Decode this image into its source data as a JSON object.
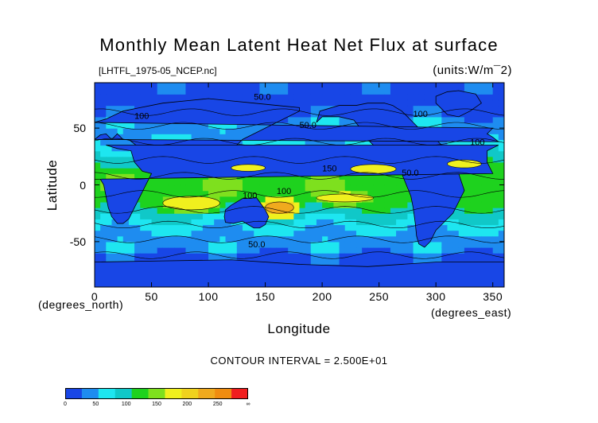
{
  "chart_data": {
    "type": "heatmap",
    "title": "Monthly Mean Latent Heat Net Flux at surface",
    "subtitle": "[LHTFL_1975-05_NCEP.nc]",
    "units": "(units:W/m^2)",
    "xlabel": "Longitude",
    "ylabel": "Latitude",
    "x_unit_label": "(degrees_east)",
    "y_unit_label": "(degrees_north)",
    "xlim": [
      0,
      360
    ],
    "ylim": [
      -90,
      90
    ],
    "x_ticks": [
      "0",
      "50",
      "100",
      "150",
      "200",
      "250",
      "300",
      "350"
    ],
    "x_tick_values": [
      0,
      50,
      100,
      150,
      200,
      250,
      300,
      350
    ],
    "y_ticks": [
      "50",
      "0",
      "-50"
    ],
    "y_tick_values": [
      50,
      0,
      -50
    ],
    "contour_interval": "CONTOUR INTERVAL = 2.500E+01",
    "contour_labels": [
      "50.0",
      "100",
      "150"
    ],
    "colorbar": {
      "labels": [
        "0",
        "50",
        "100",
        "150",
        "200",
        "250",
        "∞"
      ],
      "levels": [
        0,
        25,
        50,
        75,
        100,
        125,
        150,
        175,
        200,
        225,
        250,
        275
      ],
      "colors": [
        "#1846e6",
        "#1e8cf0",
        "#1ee6f0",
        "#10c8c8",
        "#1ed21e",
        "#7ee01e",
        "#f0f01e",
        "#f0d21e",
        "#f0aa1e",
        "#f08c10",
        "#f01e1e"
      ]
    },
    "regions": [
      {
        "name": "land-americas",
        "lon": [
          255,
          262,
          265,
          270,
          275,
          280,
          285,
          290,
          295,
          300,
          305,
          310,
          320,
          325,
          320,
          315,
          305,
          300,
          295,
          290,
          285,
          283,
          282,
          280,
          278,
          276,
          274,
          272,
          270,
          265,
          260,
          250,
          240,
          235,
          228,
          215,
          200,
          195,
          198,
          215,
          230,
          240,
          245,
          250
        ],
        "lat": [
          72,
          70,
          68,
          65,
          60,
          55,
          50,
          48,
          45,
          40,
          35,
          30,
          10,
          -5,
          -15,
          -25,
          -35,
          -40,
          -50,
          -55,
          -52,
          -45,
          -35,
          -20,
          -10,
          -5,
          0,
          5,
          10,
          15,
          20,
          30,
          40,
          48,
          57,
          60,
          60,
          55,
          65,
          70,
          70,
          72,
          72,
          72
        ],
        "value": 10
      },
      {
        "name": "land-eurasia",
        "lon": [
          350,
          0,
          10,
          25,
          40,
          60,
          80,
          100,
          120,
          140,
          160,
          180,
          180,
          170,
          160,
          150,
          140,
          130,
          125,
          120,
          110,
          105,
          100,
          95,
          90,
          80,
          75,
          70,
          60,
          55,
          50,
          45,
          40,
          35,
          30,
          25,
          20,
          15,
          10,
          5,
          0,
          355,
          350,
          345
        ],
        "lat": [
          50,
          55,
          58,
          65,
          68,
          72,
          74,
          76,
          74,
          72,
          70,
          68,
          65,
          60,
          55,
          50,
          45,
          40,
          35,
          30,
          22,
          15,
          10,
          18,
          22,
          20,
          12,
          20,
          25,
          25,
          28,
          30,
          32,
          36,
          40,
          40,
          45,
          40,
          45,
          44,
          40,
          38,
          42,
          45
        ],
        "value": 10
      },
      {
        "name": "land-africa",
        "lon": [
          345,
          355,
          10,
          20,
          32,
          35,
          42,
          50,
          45,
          40,
          35,
          30,
          25,
          20,
          15,
          12,
          10,
          8,
          5,
          0,
          350,
          345
        ],
        "lat": [
          30,
          35,
          35,
          32,
          30,
          20,
          12,
          10,
          0,
          -10,
          -20,
          -30,
          -34,
          -34,
          -28,
          -20,
          -10,
          0,
          5,
          5,
          10,
          20
        ],
        "value": 10
      },
      {
        "name": "land-australia",
        "lon": [
          115,
          120,
          130,
          137,
          142,
          145,
          150,
          153,
          150,
          145,
          140,
          135,
          130,
          122,
          115,
          114
        ],
        "lat": [
          -22,
          -18,
          -12,
          -12,
          -11,
          -15,
          -22,
          -28,
          -35,
          -38,
          -38,
          -35,
          -32,
          -34,
          -33,
          -28
        ],
        "value": 10
      },
      {
        "name": "land-antarctica",
        "lon": [
          0,
          60,
          120,
          180,
          240,
          300,
          360,
          360,
          0
        ],
        "lat": [
          -68,
          -67,
          -66,
          -70,
          -72,
          -68,
          -68,
          -90,
          -90
        ],
        "value": 10
      },
      {
        "name": "land-greenland",
        "lon": [
          300,
          310,
          320,
          335,
          340,
          330,
          320,
          310,
          300
        ],
        "lat": [
          78,
          82,
          83,
          80,
          72,
          65,
          60,
          62,
          72
        ],
        "value": 10
      }
    ],
    "bands": [
      {
        "name": "trade-belt-south",
        "lon": [
          0,
          360
        ],
        "lat": [
          -30,
          -5
        ],
        "value": 110
      },
      {
        "name": "trade-belt-north",
        "lon": [
          0,
          360
        ],
        "lat": [
          5,
          28
        ],
        "value": 95
      }
    ],
    "hotspots": [
      {
        "name": "indian-ocean-south",
        "lon": [
          60,
          110
        ],
        "lat": [
          -22,
          -10
        ],
        "value": 165
      },
      {
        "name": "coral-sea",
        "lon": [
          150,
          175
        ],
        "lat": [
          -25,
          -15
        ],
        "value": 215
      },
      {
        "name": "south-pacific",
        "lon": [
          195,
          245
        ],
        "lat": [
          -15,
          -8
        ],
        "value": 170
      },
      {
        "name": "north-pacific-east",
        "lon": [
          225,
          265
        ],
        "lat": [
          10,
          18
        ],
        "value": 160
      },
      {
        "name": "arabian-sea",
        "lon": [
          120,
          150
        ],
        "lat": [
          12,
          18
        ],
        "value": 150
      },
      {
        "name": "north-atlantic",
        "lon": [
          310,
          340
        ],
        "lat": [
          15,
          22
        ],
        "value": 160
      }
    ]
  }
}
